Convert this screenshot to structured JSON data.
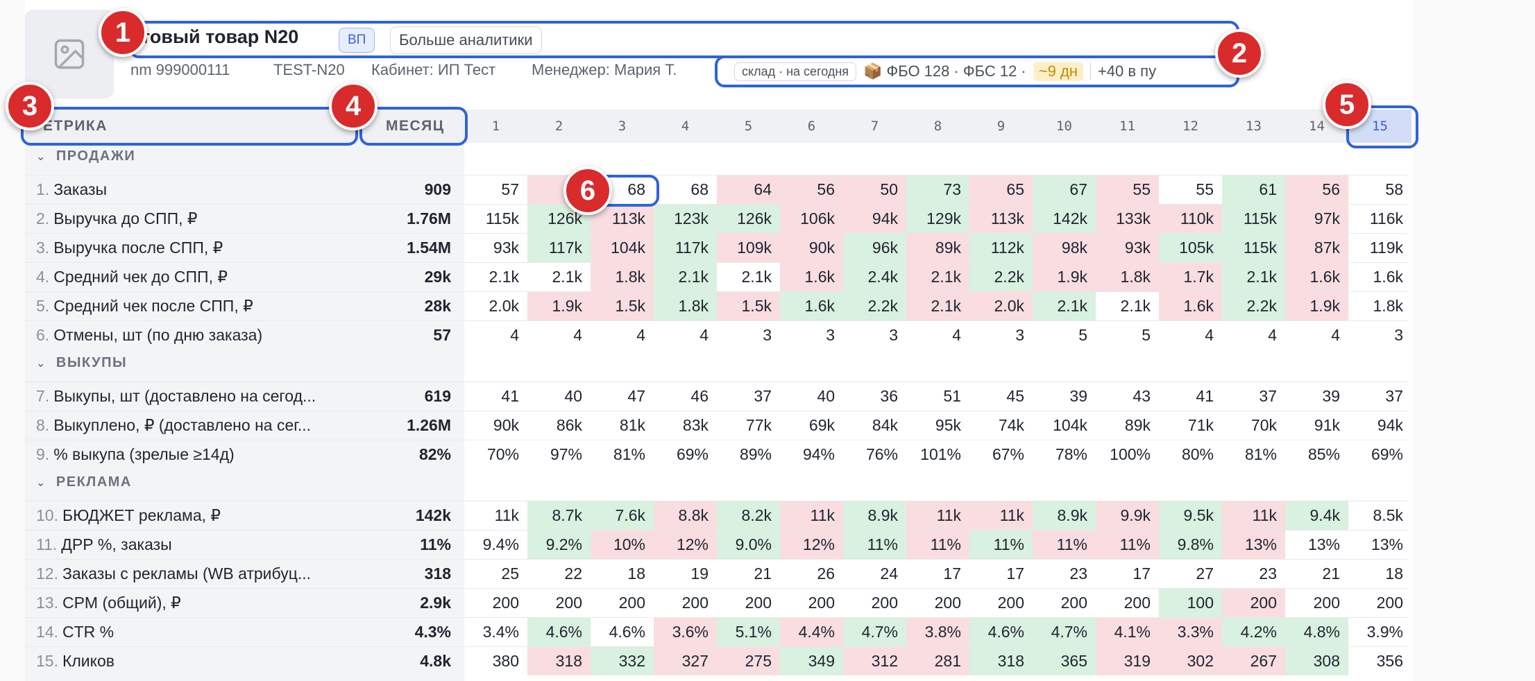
{
  "header": {
    "title": "стовый товар N20",
    "badge": "ВП",
    "more_button": "Больше аналитики",
    "nm": "nm 999000111",
    "sku": "TEST-N20",
    "cabinet": "Кабинет: ИП Тест",
    "manager": "Менеджер: Мария Т.",
    "stock_tag": "склад · на сегодня",
    "stock_text": "📦 ФБО 128 · ФБС 12 ·",
    "stock_days": "~9 дн",
    "stock_transit": "+40 в пу"
  },
  "table": {
    "metric_header": "ЕТРИКА",
    "month_header": "МЕСЯЦ",
    "days": [
      "1",
      "2",
      "3",
      "4",
      "5",
      "6",
      "7",
      "8",
      "9",
      "10",
      "11",
      "12",
      "13",
      "14",
      "15"
    ],
    "today_index": 14,
    "sections": [
      {
        "title": "ПРОДАЖИ",
        "rows": [
          {
            "num": "1.",
            "label": "Заказы",
            "total": "909",
            "values": [
              "57",
              "",
              "68",
              "68",
              "64",
              "56",
              "50",
              "73",
              "65",
              "67",
              "55",
              "55",
              "61",
              "56",
              "58"
            ],
            "tones": [
              "",
              "r",
              "",
              "",
              "r",
              "r",
              "r",
              "g",
              "r",
              "g",
              "r",
              "",
              "g",
              "r",
              ""
            ]
          },
          {
            "num": "2.",
            "label": "Выручка до СПП, ₽",
            "total": "1.76M",
            "values": [
              "115k",
              "126k",
              "113k",
              "123k",
              "126k",
              "106k",
              "94k",
              "129k",
              "113k",
              "142k",
              "133k",
              "110k",
              "115k",
              "97k",
              "116k"
            ],
            "tones": [
              "",
              "g",
              "r",
              "g",
              "g",
              "r",
              "r",
              "g",
              "r",
              "g",
              "r",
              "r",
              "g",
              "r",
              ""
            ]
          },
          {
            "num": "3.",
            "label": "Выручка после СПП, ₽",
            "total": "1.54M",
            "values": [
              "93k",
              "117k",
              "104k",
              "117k",
              "109k",
              "90k",
              "96k",
              "89k",
              "112k",
              "98k",
              "93k",
              "105k",
              "115k",
              "87k",
              "119k"
            ],
            "tones": [
              "",
              "g",
              "r",
              "g",
              "r",
              "r",
              "g",
              "r",
              "g",
              "r",
              "r",
              "g",
              "g",
              "r",
              ""
            ]
          },
          {
            "num": "4.",
            "label": "Средний чек до СПП, ₽",
            "total": "29k",
            "values": [
              "2.1k",
              "2.1k",
              "1.8k",
              "2.1k",
              "2.1k",
              "1.6k",
              "2.4k",
              "2.1k",
              "2.2k",
              "1.9k",
              "1.8k",
              "1.7k",
              "2.1k",
              "1.6k",
              "1.6k"
            ],
            "tones": [
              "",
              "",
              "r",
              "g",
              "",
              "r",
              "g",
              "r",
              "g",
              "r",
              "r",
              "r",
              "g",
              "r",
              ""
            ]
          },
          {
            "num": "5.",
            "label": "Средний чек после СПП, ₽",
            "total": "28k",
            "values": [
              "2.0k",
              "1.9k",
              "1.5k",
              "1.8k",
              "1.5k",
              "1.6k",
              "2.2k",
              "2.1k",
              "2.0k",
              "2.1k",
              "2.1k",
              "1.6k",
              "2.2k",
              "1.9k",
              "1.8k"
            ],
            "tones": [
              "",
              "r",
              "r",
              "g",
              "r",
              "g",
              "g",
              "r",
              "r",
              "g",
              "",
              "r",
              "g",
              "r",
              ""
            ]
          },
          {
            "num": "6.",
            "label": "Отмены, шт (по дню заказа)",
            "total": "57",
            "values": [
              "4",
              "4",
              "4",
              "4",
              "3",
              "3",
              "3",
              "4",
              "3",
              "5",
              "5",
              "4",
              "4",
              "4",
              "3"
            ],
            "tones": [
              "",
              "",
              "",
              "",
              "",
              "",
              "",
              "",
              "",
              "",
              "",
              "",
              "",
              "",
              ""
            ]
          }
        ]
      },
      {
        "title": "ВЫКУПЫ",
        "rows": [
          {
            "num": "7.",
            "label": "Выкупы, шт (доставлено на сегод...",
            "total": "619",
            "values": [
              "41",
              "40",
              "47",
              "46",
              "37",
              "40",
              "36",
              "51",
              "45",
              "39",
              "43",
              "41",
              "37",
              "39",
              "37"
            ],
            "tones": [
              "",
              "",
              "",
              "",
              "",
              "",
              "",
              "",
              "",
              "",
              "",
              "",
              "",
              "",
              ""
            ]
          },
          {
            "num": "8.",
            "label": "Выкуплено, ₽ (доставлено на сег...",
            "total": "1.26M",
            "values": [
              "90k",
              "86k",
              "81k",
              "83k",
              "77k",
              "69k",
              "84k",
              "95k",
              "74k",
              "104k",
              "89k",
              "71k",
              "70k",
              "91k",
              "94k"
            ],
            "tones": [
              "",
              "",
              "",
              "",
              "",
              "",
              "",
              "",
              "",
              "",
              "",
              "",
              "",
              "",
              ""
            ]
          },
          {
            "num": "9.",
            "label": "% выкупа (зрелые ≥14д)",
            "total": "82%",
            "values": [
              "70%",
              "97%",
              "81%",
              "69%",
              "89%",
              "94%",
              "76%",
              "101%",
              "67%",
              "78%",
              "100%",
              "80%",
              "81%",
              "85%",
              "69%"
            ],
            "tones": [
              "",
              "",
              "",
              "",
              "",
              "",
              "",
              "",
              "",
              "",
              "",
              "",
              "",
              "",
              ""
            ]
          }
        ]
      },
      {
        "title": "РЕКЛАМА",
        "rows": [
          {
            "num": "10.",
            "label": "БЮДЖЕТ реклама, ₽",
            "total": "142k",
            "values": [
              "11k",
              "8.7k",
              "7.6k",
              "8.8k",
              "8.2k",
              "11k",
              "8.9k",
              "11k",
              "11k",
              "8.9k",
              "9.9k",
              "9.5k",
              "11k",
              "9.4k",
              "8.5k"
            ],
            "tones": [
              "",
              "g",
              "g",
              "r",
              "g",
              "r",
              "g",
              "r",
              "r",
              "g",
              "r",
              "g",
              "r",
              "g",
              ""
            ]
          },
          {
            "num": "11.",
            "label": "ДРР %, заказы",
            "total": "11%",
            "values": [
              "9.4%",
              "9.2%",
              "10%",
              "12%",
              "9.0%",
              "12%",
              "11%",
              "11%",
              "11%",
              "11%",
              "11%",
              "9.8%",
              "13%",
              "13%",
              "13%"
            ],
            "tones": [
              "",
              "g",
              "r",
              "r",
              "g",
              "r",
              "g",
              "r",
              "g",
              "r",
              "r",
              "g",
              "r",
              "",
              ""
            ]
          },
          {
            "num": "12.",
            "label": "Заказы с рекламы (WB атрибуц...",
            "total": "318",
            "values": [
              "25",
              "22",
              "18",
              "19",
              "21",
              "26",
              "24",
              "17",
              "17",
              "23",
              "17",
              "27",
              "23",
              "21",
              "18"
            ],
            "tones": [
              "",
              "",
              "",
              "",
              "",
              "",
              "",
              "",
              "",
              "",
              "",
              "",
              "",
              "",
              ""
            ]
          },
          {
            "num": "13.",
            "label": "CPM (общий), ₽",
            "total": "2.9k",
            "values": [
              "200",
              "200",
              "200",
              "200",
              "200",
              "200",
              "200",
              "200",
              "200",
              "200",
              "200",
              "100",
              "200",
              "200",
              "200"
            ],
            "tones": [
              "",
              "",
              "",
              "",
              "",
              "",
              "",
              "",
              "",
              "",
              "",
              "g",
              "r",
              "",
              ""
            ]
          },
          {
            "num": "14.",
            "label": "CTR %",
            "total": "4.3%",
            "values": [
              "3.4%",
              "4.6%",
              "4.6%",
              "3.6%",
              "5.1%",
              "4.4%",
              "4.7%",
              "3.8%",
              "4.6%",
              "4.7%",
              "4.1%",
              "3.3%",
              "4.2%",
              "4.8%",
              "3.9%"
            ],
            "tones": [
              "",
              "g",
              "",
              "r",
              "g",
              "r",
              "g",
              "r",
              "g",
              "g",
              "r",
              "r",
              "g",
              "g",
              ""
            ]
          },
          {
            "num": "15.",
            "label": "Кликов",
            "total": "4.8k",
            "values": [
              "380",
              "318",
              "332",
              "327",
              "275",
              "349",
              "312",
              "281",
              "318",
              "365",
              "319",
              "302",
              "267",
              "308",
              "356"
            ],
            "tones": [
              "",
              "r",
              "g",
              "r",
              "r",
              "g",
              "r",
              "r",
              "g",
              "g",
              "r",
              "r",
              "r",
              "g",
              ""
            ]
          }
        ]
      }
    ]
  },
  "markers": [
    "1",
    "2",
    "3",
    "4",
    "5",
    "6"
  ],
  "colors": {
    "positive": "#d9f1e0",
    "negative": "#f9dde0",
    "accent": "#2f63dc",
    "marker": "#d92b2b"
  }
}
